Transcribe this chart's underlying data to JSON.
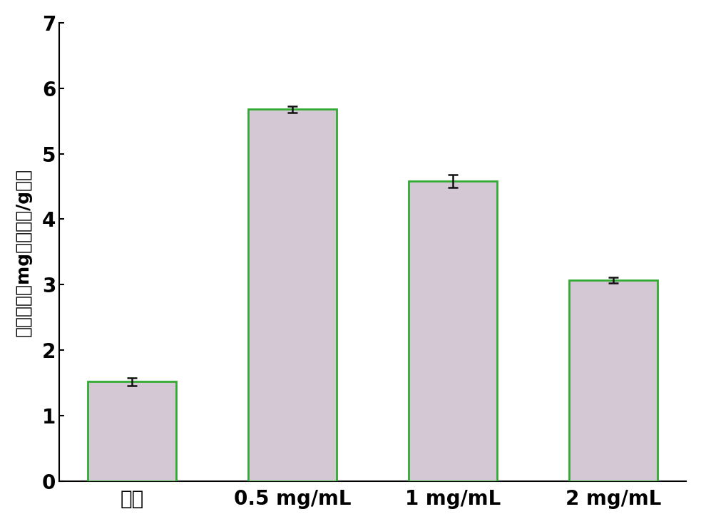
{
  "categories": [
    "空白",
    "0.5 mg/mL",
    "1 mg/mL",
    "2 mg/mL"
  ],
  "values": [
    1.52,
    5.68,
    4.58,
    3.07
  ],
  "errors": [
    0.06,
    0.05,
    0.1,
    0.04
  ],
  "bar_color": "#d4c8d4",
  "bar_edgecolor": "#33aa33",
  "bar_linewidth": 2.0,
  "ylabel": "总酚含量（mg没食子酸/g膜）",
  "ylim": [
    0,
    7
  ],
  "yticks": [
    0,
    1,
    2,
    3,
    4,
    5,
    6,
    7
  ],
  "error_color": "#111111",
  "error_linewidth": 1.8,
  "error_capsize": 5,
  "error_capthick": 1.8,
  "background_color": "#ffffff",
  "bar_width": 0.55,
  "tick_fontsize": 20,
  "label_fontsize": 18,
  "spine_linewidth": 1.5,
  "bar_positions": [
    0,
    1,
    2,
    3
  ]
}
